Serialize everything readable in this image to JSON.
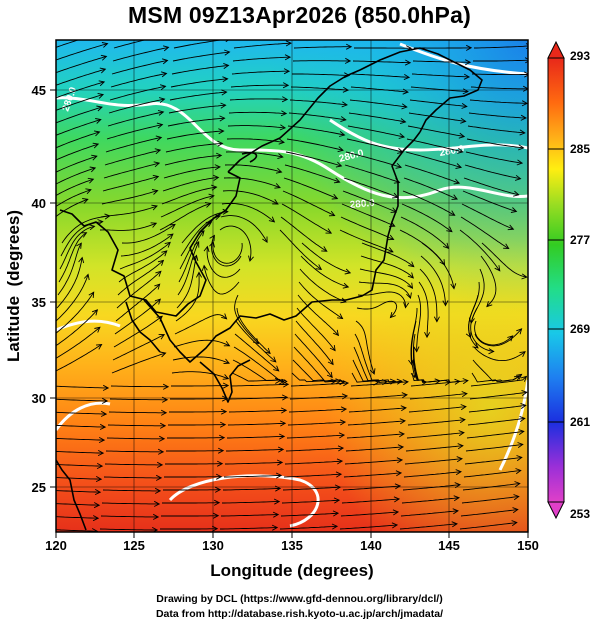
{
  "title": "MSM 09Z13Apr2026 (850.0hPa)",
  "x_axis": {
    "label": "Longitude (degrees)",
    "ticks": [
      "120",
      "125",
      "130",
      "135",
      "140",
      "145",
      "150"
    ]
  },
  "y_axis": {
    "label": "Latitude  (degrees)",
    "ticks": [
      "25",
      "30",
      "35",
      "40",
      "45"
    ]
  },
  "colorbar": {
    "ticks": [
      "293",
      "285",
      "277",
      "269",
      "261",
      "253"
    ],
    "min": 253,
    "max": 293,
    "colors": [
      "#e040c8",
      "#9a2fd8",
      "#1b2fe0",
      "#1e7ff0",
      "#19c8e8",
      "#22dd88",
      "#33cc22",
      "#99dd22",
      "#ffee11",
      "#ffb018",
      "#ff6a10",
      "#e8281a"
    ]
  },
  "contour_labels": [
    "280.0",
    "280.0",
    "280.0",
    "280.0"
  ],
  "credits": {
    "line1": "Drawing by DCL (https://www.gfd-dennou.org/library/dcl/)",
    "line2": "Data from http://database.rish.kyoto-u.ac.jp/arch/jmadata/"
  }
}
